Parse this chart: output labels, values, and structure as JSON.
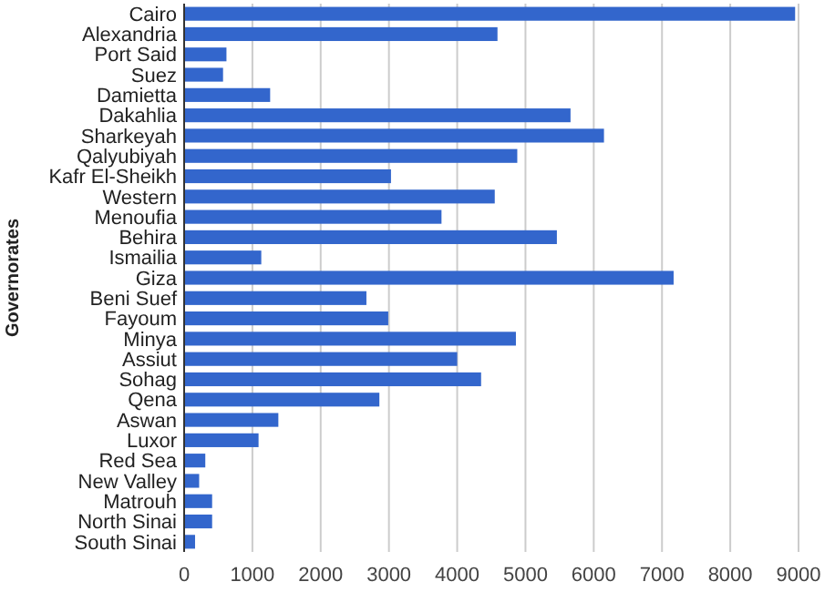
{
  "chart_data": {
    "type": "bar",
    "orientation": "horizontal",
    "ylabel": "Governorates",
    "categories": [
      "Cairo",
      "Alexandria",
      "Port Said",
      "Suez",
      "Damietta",
      "Dakahlia",
      "Sharkeyah",
      "Qalyubiyah",
      "Kafr El-Sheikh",
      "Western",
      "Menoufia",
      "Behira",
      "Ismailia",
      "Giza",
      "Beni Suef",
      "Fayoum",
      "Minya",
      "Assiut",
      "Sohag",
      "Qena",
      "Aswan",
      "Luxor",
      "Red Sea",
      "New Valley",
      "Matrouh",
      "North Sinai",
      "South Sinai"
    ],
    "values": [
      8950,
      4590,
      620,
      570,
      1260,
      5660,
      6150,
      4880,
      3030,
      4550,
      3770,
      5460,
      1130,
      7170,
      2670,
      2990,
      4860,
      4000,
      4350,
      2860,
      1380,
      1090,
      310,
      220,
      410,
      410,
      160
    ],
    "color": "#3366cc",
    "xlim": [
      0,
      9000
    ],
    "xticks": [
      0,
      1000,
      2000,
      3000,
      4000,
      5000,
      6000,
      7000,
      8000,
      9000
    ],
    "grid": "x"
  }
}
